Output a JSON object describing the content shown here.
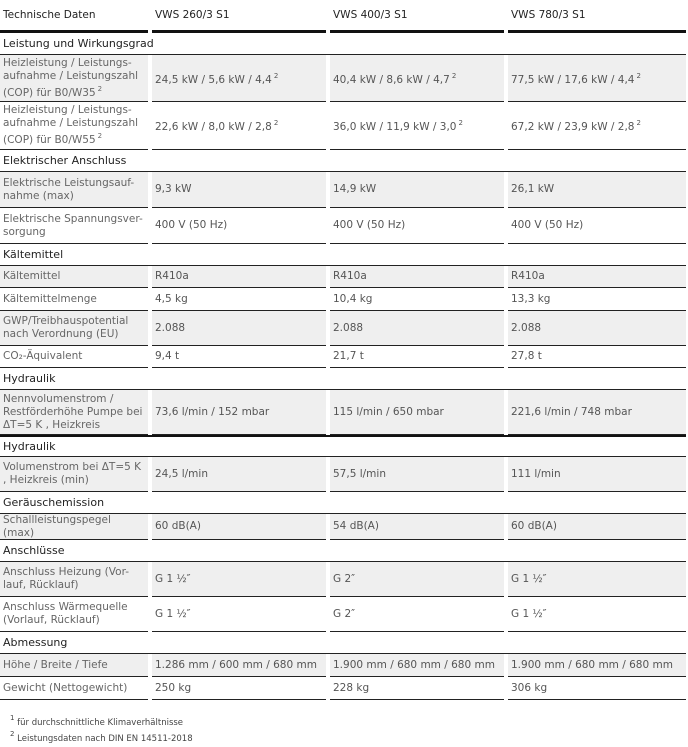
{
  "header": [
    "Technische Daten",
    "VWS 260/3 S1",
    "VWS 400/3 S1",
    "VWS 780/3 S1"
  ],
  "sections": [
    {
      "title": "Leistung und Wirkungsgrad",
      "rows": [
        {
          "label": "Heizleistung / Leistungs-aufnahme / Leistungszahl (COP) für B0/W35",
          "label_sup": "2",
          "values": [
            "24,5 kW / 5,6 kW / 4,4",
            "40,4 kW / 8,6 kW / 4,7",
            "77,5 kW / 17,6 kW / 4,4"
          ],
          "value_sup": "2",
          "h": 47
        },
        {
          "label": "Heizleistung / Leistungs-aufnahme / Leistungszahl (COP) für B0/W55",
          "label_sup": "2",
          "values": [
            "22,6 kW / 8,0 kW / 2,8",
            "36,0 kW / 11,9 kW / 3,0",
            "67,2 kW / 23,9 kW / 2,8"
          ],
          "value_sup": "2",
          "h": 48
        }
      ]
    },
    {
      "title": "Elektrischer Anschluss",
      "rows": [
        {
          "label": "Elektrische Leistungsauf-nahme (max)",
          "values": [
            "9,3 kW",
            "14,9 kW",
            "26,1 kW"
          ],
          "h": 36
        },
        {
          "label": "Elektrische Spannungsver-sorgung",
          "values": [
            "400 V (50 Hz)",
            "400 V (50 Hz)",
            "400 V (50 Hz)"
          ],
          "h": 36
        }
      ]
    },
    {
      "title": "Kältemittel",
      "rows": [
        {
          "label": "Kältemittel",
          "values": [
            "R410a",
            "R410a",
            "R410a"
          ],
          "h": 22
        },
        {
          "label": "Kältemittelmenge",
          "values": [
            "4,5 kg",
            "10,4 kg",
            "13,3 kg"
          ],
          "h": 23
        },
        {
          "label": "GWP/Treibhauspotential nach Verordnung (EU)",
          "values": [
            "2.088",
            "2.088",
            "2.088"
          ],
          "h": 35
        },
        {
          "label": "CO₂-Äquivalent",
          "values": [
            "9,4 t",
            "21,7 t",
            "27,8 t"
          ],
          "h": 22
        }
      ]
    },
    {
      "title": "Hydraulik",
      "rows": [
        {
          "label": "Nennvolumenstrom / Restförderhöhe Pumpe bei ΔT=5 K , Heizkreis",
          "values": [
            "73,6 l/min / 152 mbar",
            "115 l/min / 650 mbar",
            "221,6 l/min / 748 mbar"
          ],
          "h": 45
        }
      ]
    },
    {
      "title": "Hydraulik",
      "thick": true,
      "rows": [
        {
          "label": "Volumenstrom bei ΔT=5 K , Heizkreis (min)",
          "values": [
            "24,5 l/min",
            "57,5 l/min",
            "111 l/min"
          ],
          "h": 35
        }
      ]
    },
    {
      "title": "Geräuschemission",
      "rows": [
        {
          "label": "Schallleistungspegel (max)",
          "values": [
            "60 dB(A)",
            "54 dB(A)",
            "60 dB(A)"
          ],
          "h": 26
        }
      ]
    },
    {
      "title": "Anschlüsse",
      "rows": [
        {
          "label": "Anschluss Heizung (Vor-lauf, Rücklauf)",
          "values": [
            "G 1 ½″",
            "G 2″",
            "G 1 ½″"
          ],
          "h": 35
        },
        {
          "label": "Anschluss Wärmequelle (Vorlauf, Rücklauf)",
          "values": [
            "G 1 ½″",
            "G 2″",
            "G 1 ½″"
          ],
          "h": 35
        }
      ]
    },
    {
      "title": "Abmessung",
      "rows": [
        {
          "label": "Höhe / Breite / Tiefe",
          "values": [
            "1.286 mm / 600 mm / 680 mm",
            "1.900 mm / 680 mm / 680 mm",
            "1.900 mm / 680 mm / 680 mm"
          ],
          "h": 23
        },
        {
          "label": "Gewicht (Nettogewicht)",
          "values": [
            "250 kg",
            "228 kg",
            "306 kg"
          ],
          "h": 23
        }
      ]
    }
  ],
  "footnotes": [
    {
      "mark": "1",
      "text": "für durchschnittliche Klimaverhältnisse"
    },
    {
      "mark": "2",
      "text": "Leistungsdaten nach DIN EN 14511-2018"
    }
  ]
}
